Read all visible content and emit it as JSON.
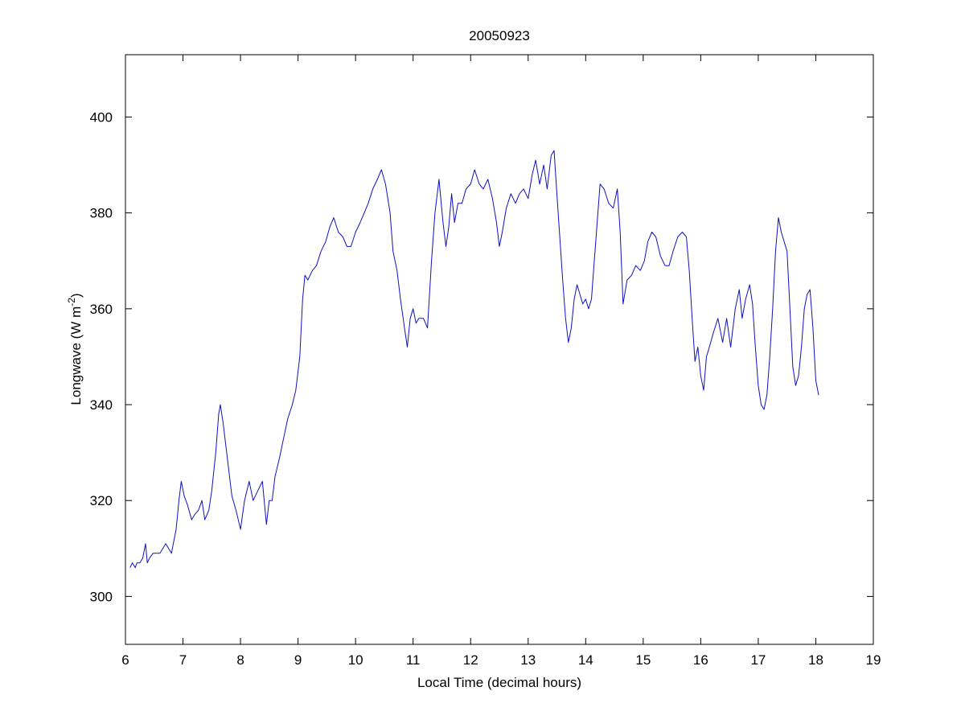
{
  "chart_data": {
    "type": "line",
    "title": "20050923",
    "xlabel": "Local Time (decimal hours)",
    "ylabel_main": "Longwave (W m",
    "ylabel_sup": "-2",
    "ylabel_close": ")",
    "xlim": [
      6,
      19
    ],
    "ylim": [
      290,
      413
    ],
    "xticks": [
      6,
      7,
      8,
      9,
      10,
      11,
      12,
      13,
      14,
      15,
      16,
      17,
      18,
      19
    ],
    "yticks": [
      300,
      320,
      340,
      360,
      380,
      400
    ],
    "grid": false,
    "line_color": "#1010c0",
    "series": [
      {
        "x": [
          6.08,
          6.12,
          6.17,
          6.2,
          6.25,
          6.3,
          6.35,
          6.38,
          6.42,
          6.48,
          6.55,
          6.6,
          6.7,
          6.8,
          6.88,
          6.93,
          6.97,
          7.02,
          7.08,
          7.15,
          7.2,
          7.27,
          7.33,
          7.38,
          7.45,
          7.5,
          7.57,
          7.62,
          7.65,
          7.7,
          7.78,
          7.85,
          7.92,
          8.0,
          8.07,
          8.15,
          8.22,
          8.3,
          8.38,
          8.45,
          8.5,
          8.55,
          8.6,
          8.68,
          8.75,
          8.82,
          8.9,
          8.96,
          9.03,
          9.08,
          9.12,
          9.17,
          9.25,
          9.32,
          9.4,
          9.48,
          9.55,
          9.62,
          9.7,
          9.78,
          9.85,
          9.92,
          10.0,
          10.08,
          10.15,
          10.22,
          10.3,
          10.38,
          10.45,
          10.52,
          10.6,
          10.65,
          10.72,
          10.78,
          10.85,
          10.9,
          10.95,
          11.0,
          11.05,
          11.1,
          11.18,
          11.25,
          11.32,
          11.38,
          11.45,
          11.52,
          11.57,
          11.62,
          11.67,
          11.72,
          11.78,
          11.85,
          11.92,
          12.0,
          12.07,
          12.15,
          12.22,
          12.3,
          12.38,
          12.45,
          12.5,
          12.55,
          12.62,
          12.7,
          12.78,
          12.85,
          12.92,
          13.0,
          13.07,
          13.13,
          13.2,
          13.27,
          13.33,
          13.4,
          13.45,
          13.5,
          13.55,
          13.6,
          13.65,
          13.7,
          13.75,
          13.8,
          13.85,
          13.9,
          13.95,
          14.0,
          14.05,
          14.1,
          14.15,
          14.2,
          14.25,
          14.32,
          14.4,
          14.48,
          14.55,
          14.6,
          14.65,
          14.72,
          14.8,
          14.87,
          14.95,
          15.02,
          15.08,
          15.15,
          15.22,
          15.3,
          15.38,
          15.45,
          15.52,
          15.6,
          15.68,
          15.75,
          15.8,
          15.85,
          15.9,
          15.95,
          16.0,
          16.05,
          16.1,
          16.15,
          16.22,
          16.3,
          16.38,
          16.45,
          16.52,
          16.6,
          16.67,
          16.72,
          16.78,
          16.85,
          16.9,
          16.95,
          17.0,
          17.05,
          17.1,
          17.15,
          17.2,
          17.25,
          17.3,
          17.35,
          17.4,
          17.45,
          17.5,
          17.55,
          17.6,
          17.65,
          17.7,
          17.75,
          17.8,
          17.85,
          17.9,
          17.95,
          18.0,
          18.05
        ],
        "y": [
          306,
          307,
          306,
          307,
          307,
          308,
          311,
          307,
          308,
          309,
          309,
          309,
          311,
          309,
          314,
          320,
          324,
          321,
          319,
          316,
          317,
          318,
          320,
          316,
          318,
          322,
          330,
          338,
          340,
          336,
          328,
          321,
          318,
          314,
          320,
          324,
          320,
          322,
          324,
          315,
          320,
          320,
          325,
          329,
          333,
          337,
          340,
          343,
          350,
          362,
          367,
          366,
          368,
          369,
          372,
          374,
          377,
          379,
          376,
          375,
          373,
          373,
          376,
          378,
          380,
          382,
          385,
          387,
          389,
          386,
          380,
          372,
          368,
          362,
          356,
          352,
          358,
          360,
          357,
          358,
          358,
          356,
          370,
          380,
          387,
          378,
          373,
          377,
          384,
          378,
          382,
          382,
          385,
          386,
          389,
          386,
          385,
          387,
          383,
          378,
          373,
          376,
          381,
          384,
          382,
          384,
          385,
          383,
          388,
          391,
          386,
          390,
          385,
          392,
          393,
          384,
          375,
          366,
          358,
          353,
          356,
          362,
          365,
          363,
          361,
          362,
          360,
          362,
          370,
          378,
          386,
          385,
          382,
          381,
          385,
          376,
          361,
          366,
          367,
          369,
          368,
          370,
          374,
          376,
          375,
          371,
          369,
          369,
          372,
          375,
          376,
          375,
          368,
          358,
          349,
          352,
          346,
          343,
          350,
          352,
          355,
          358,
          353,
          358,
          352,
          360,
          364,
          358,
          362,
          365,
          361,
          352,
          344,
          340,
          339,
          342,
          350,
          360,
          372,
          379,
          376,
          374,
          372,
          360,
          348,
          344,
          346,
          352,
          360,
          363,
          364,
          356,
          345,
          342
        ]
      }
    ]
  }
}
